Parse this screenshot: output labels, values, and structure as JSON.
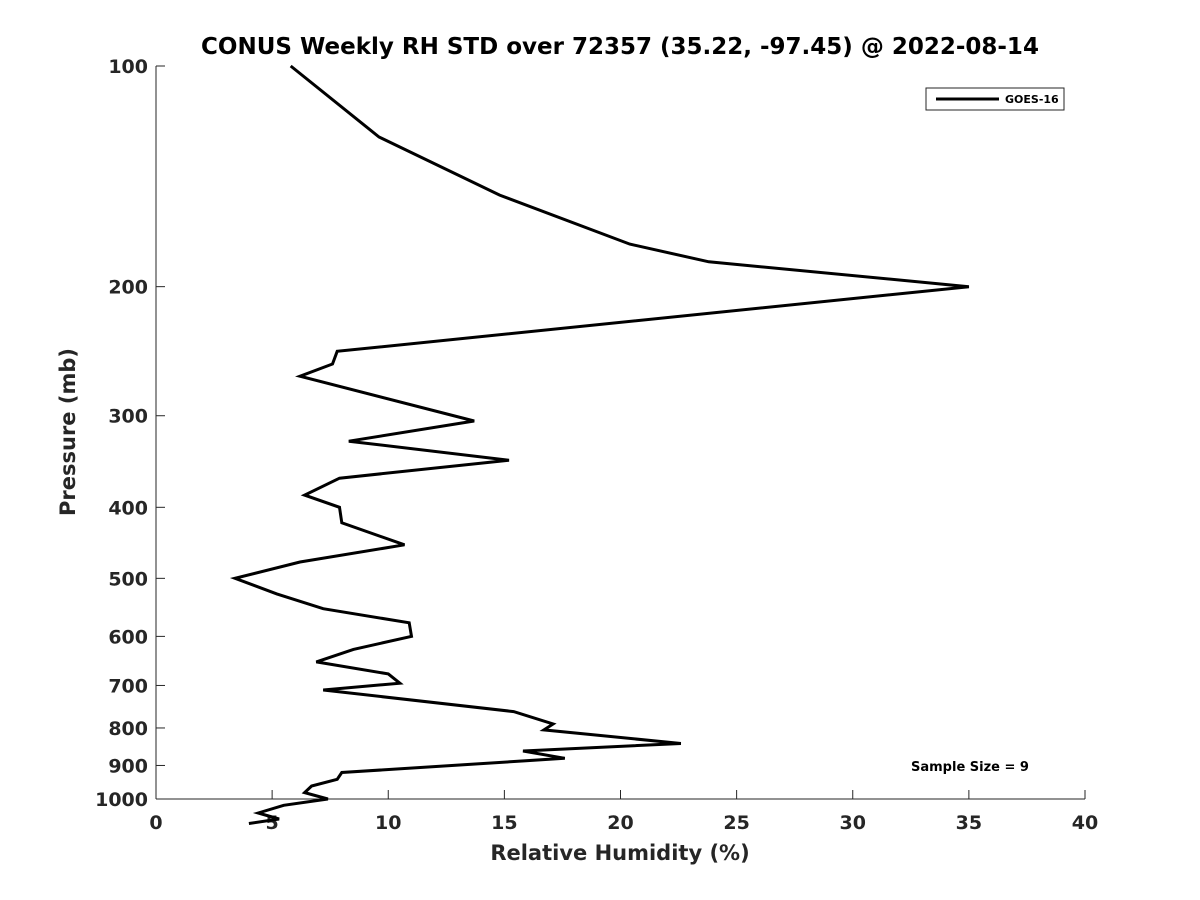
{
  "chart_data": {
    "type": "line",
    "title": "CONUS Weekly RH STD over 72357 (35.22, -97.45) @ 2022-08-14",
    "xlabel": "Relative Humidity (%)",
    "ylabel": "Pressure (mb)",
    "xlim": [
      0,
      40
    ],
    "ylim": [
      100,
      1000
    ],
    "yscale": "log",
    "y_reversed": true,
    "xticks": [
      0,
      5,
      10,
      15,
      20,
      25,
      30,
      35,
      40
    ],
    "yticks": [
      100,
      200,
      300,
      400,
      500,
      600,
      700,
      800,
      900,
      1000
    ],
    "grid": false,
    "legend_position": "top-right",
    "series": [
      {
        "name": "GOES-16",
        "color": "#000000",
        "x": [
          5.8,
          9.6,
          14.8,
          20.4,
          23.8,
          35.0,
          7.8,
          7.6,
          6.2,
          13.7,
          8.3,
          15.2,
          7.9,
          6.4,
          7.9,
          8.0,
          10.7,
          6.2,
          3.4,
          5.2,
          7.2,
          10.9,
          11.0,
          8.5,
          6.9,
          10.0,
          10.5,
          7.2,
          15.4,
          17.1,
          16.7,
          22.6,
          15.8,
          17.6,
          8.0,
          7.8,
          6.7,
          6.4,
          7.4,
          5.5,
          4.4,
          5.3,
          4.0
        ],
        "y": [
          100,
          125,
          150,
          175,
          185,
          200,
          245,
          255,
          265,
          305,
          325,
          345,
          365,
          385,
          400,
          420,
          450,
          475,
          500,
          525,
          550,
          575,
          600,
          625,
          650,
          675,
          695,
          710,
          760,
          790,
          805,
          840,
          860,
          880,
          920,
          940,
          960,
          980,
          1000,
          1020,
          1045,
          1065,
          1080
        ]
      }
    ],
    "annotations": [
      "Sample Size = 9"
    ]
  },
  "colors": {
    "line": "#000000",
    "axis": "#262626",
    "background": "#ffffff"
  }
}
